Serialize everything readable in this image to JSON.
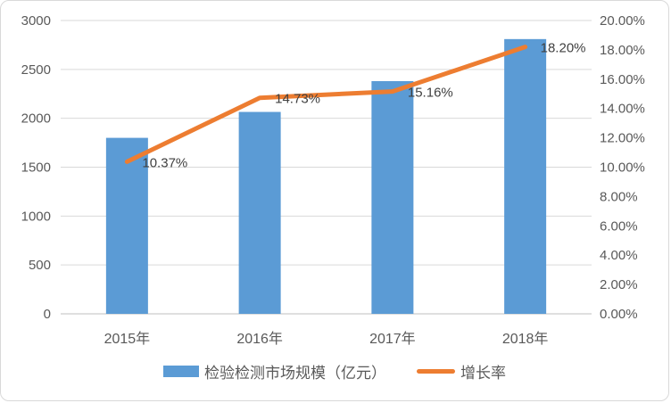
{
  "chart_data": {
    "type": "combo",
    "subtype": "bar+line",
    "title": "",
    "categories": [
      "2015年",
      "2016年",
      "2017年",
      "2018年"
    ],
    "series": [
      {
        "name": "检验检测市场规模（亿元）",
        "type": "bar",
        "axis": "left",
        "color": "#5B9BD5",
        "values": [
          1800,
          2065,
          2380,
          2810
        ]
      },
      {
        "name": "增长率",
        "type": "line",
        "axis": "right",
        "color": "#ED7D31",
        "values": [
          10.37,
          14.73,
          15.16,
          18.2
        ],
        "data_labels": [
          "10.37%",
          "14.73%",
          "15.16%",
          "18.20%"
        ]
      }
    ],
    "left_axis": {
      "min": 0,
      "max": 3000,
      "step": 500,
      "tick_labels": [
        "0",
        "500",
        "1000",
        "1500",
        "2000",
        "2500",
        "3000"
      ]
    },
    "right_axis": {
      "min": 0,
      "max": 20,
      "step": 2,
      "tick_labels": [
        "0.00%",
        "2.00%",
        "4.00%",
        "6.00%",
        "8.00%",
        "10.00%",
        "12.00%",
        "14.00%",
        "16.00%",
        "18.00%",
        "20.00%"
      ]
    },
    "grid": true,
    "legend_position": "bottom"
  },
  "colors": {
    "bar": "#5B9BD5",
    "line": "#ED7D31",
    "gridline": "#D9D9D9",
    "axis_line": "#BFBFBF",
    "tick_text": "#595959",
    "category_text": "#595959",
    "data_label_text": "#404040",
    "legend_text": "#595959",
    "border": "#D9D9D9",
    "background": "#FFFFFF"
  }
}
